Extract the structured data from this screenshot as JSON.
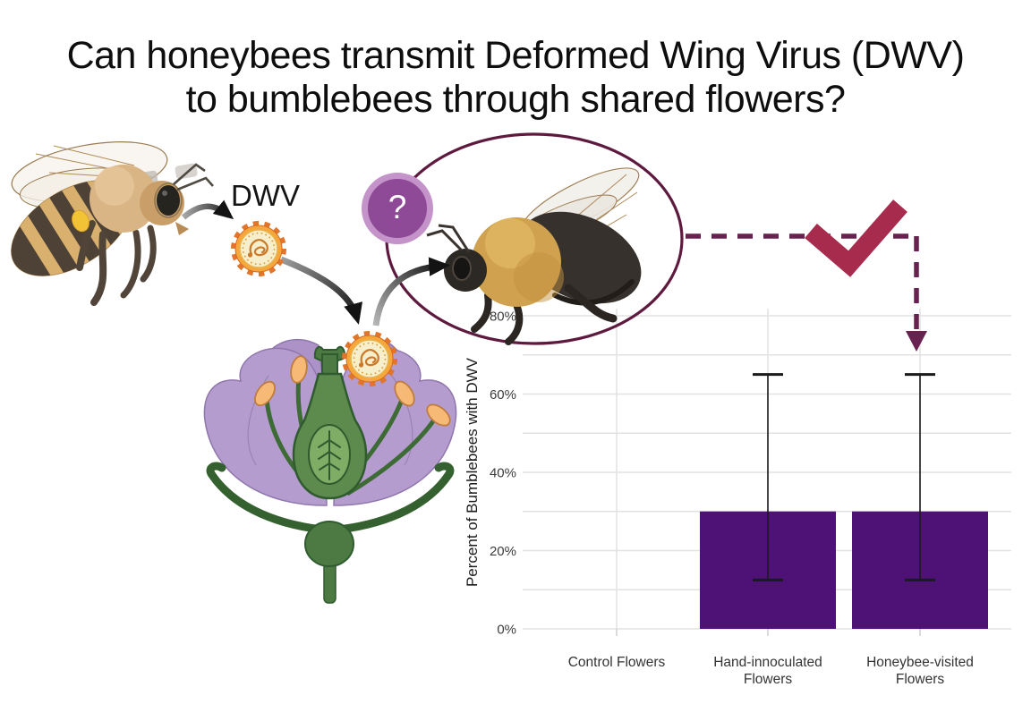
{
  "title": {
    "line1": "Can honeybees transmit Deformed Wing Virus (DWV)",
    "line2": "to bumblebees through shared flowers?"
  },
  "diagram": {
    "dwv_label": "DWV",
    "question_mark": "?",
    "honeybee": "honeybee",
    "bumblebee": "bumblebee",
    "flower": "flower cross-section with DWV virus particle",
    "virus": "DWV virus particle",
    "checkmark_meaning": "transmission confirmed"
  },
  "chart_data": {
    "type": "bar",
    "title": "",
    "xlabel": "",
    "ylabel": "Percent of Bumblebees with DWV",
    "categories": [
      "Control Flowers",
      "Hand-innoculated Flowers",
      "Honeybee-visited Flowers"
    ],
    "category_lines": [
      [
        "Control Flowers"
      ],
      [
        "Hand-innoculated",
        "Flowers"
      ],
      [
        "Honeybee-visited",
        "Flowers"
      ]
    ],
    "values": [
      0,
      30,
      30
    ],
    "error_bars": [
      null,
      {
        "low": 12.5,
        "high": 65
      },
      {
        "low": 12.5,
        "high": 65
      }
    ],
    "ytick_labels": [
      "0%",
      "20%",
      "40%",
      "60%",
      "80%"
    ],
    "ytick_values": [
      0,
      20,
      40,
      60,
      80
    ],
    "ylim": [
      0,
      80
    ],
    "gridlines_every": 10,
    "grid": "horizontal every 10%, vertical at category centers",
    "legend_position": "none",
    "bar_color": "#4E1277"
  },
  "colors": {
    "bar": "#4E1277",
    "checkmark": "#A62B4D",
    "dashed_connector": "#67224F",
    "ellipse_stroke": "#5E1A3E",
    "question_fill": "#8E4A96",
    "question_ring": "#C493C9",
    "gridline": "#E2E2E2",
    "axis_tick": "#CFCFCF",
    "axis_text": "#3C3C3C",
    "error_bar": "#1A1A1A",
    "title_text": "#0E0E0E"
  }
}
